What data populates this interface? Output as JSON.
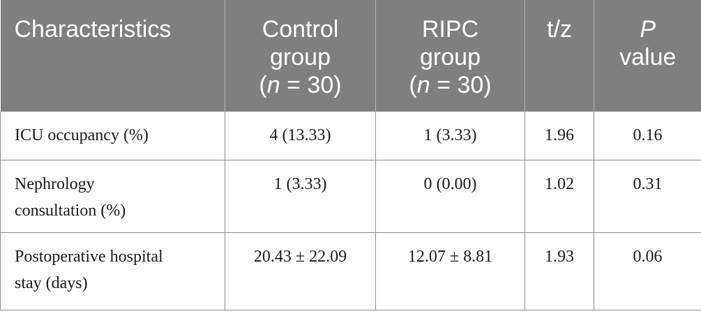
{
  "header": {
    "characteristics": "Characteristics",
    "control": {
      "line1": "Control",
      "line2": "group",
      "n_open": "(",
      "n_var": "n",
      "n_rest": " = 30)"
    },
    "ripc": {
      "line1": "RIPC",
      "line2": "group",
      "n_open": "(",
      "n_var": "n",
      "n_rest": " = 30)"
    },
    "tz": "t/z",
    "p": {
      "var": "P",
      "line2": "value"
    }
  },
  "rows": [
    {
      "line1": "ICU occupancy (%)",
      "line2": "",
      "control": "4 (13.33)",
      "ripc": "1 (3.33)",
      "tz": "1.96",
      "p": "0.16"
    },
    {
      "line1": "Nephrology",
      "line2": "consultation (%)",
      "control": "1 (3.33)",
      "ripc": "0 (0.00)",
      "tz": "1.02",
      "p": "0.31"
    },
    {
      "line1": "Postoperative hospital",
      "line2": "stay (days)",
      "control": "20.43 ± 22.09",
      "ripc": "12.07 ± 8.81",
      "tz": "1.93",
      "p": "0.06"
    }
  ],
  "colors": {
    "header_bg": "#7f7f7f",
    "header_text": "#ffffff",
    "border": "#8c8c8c"
  }
}
